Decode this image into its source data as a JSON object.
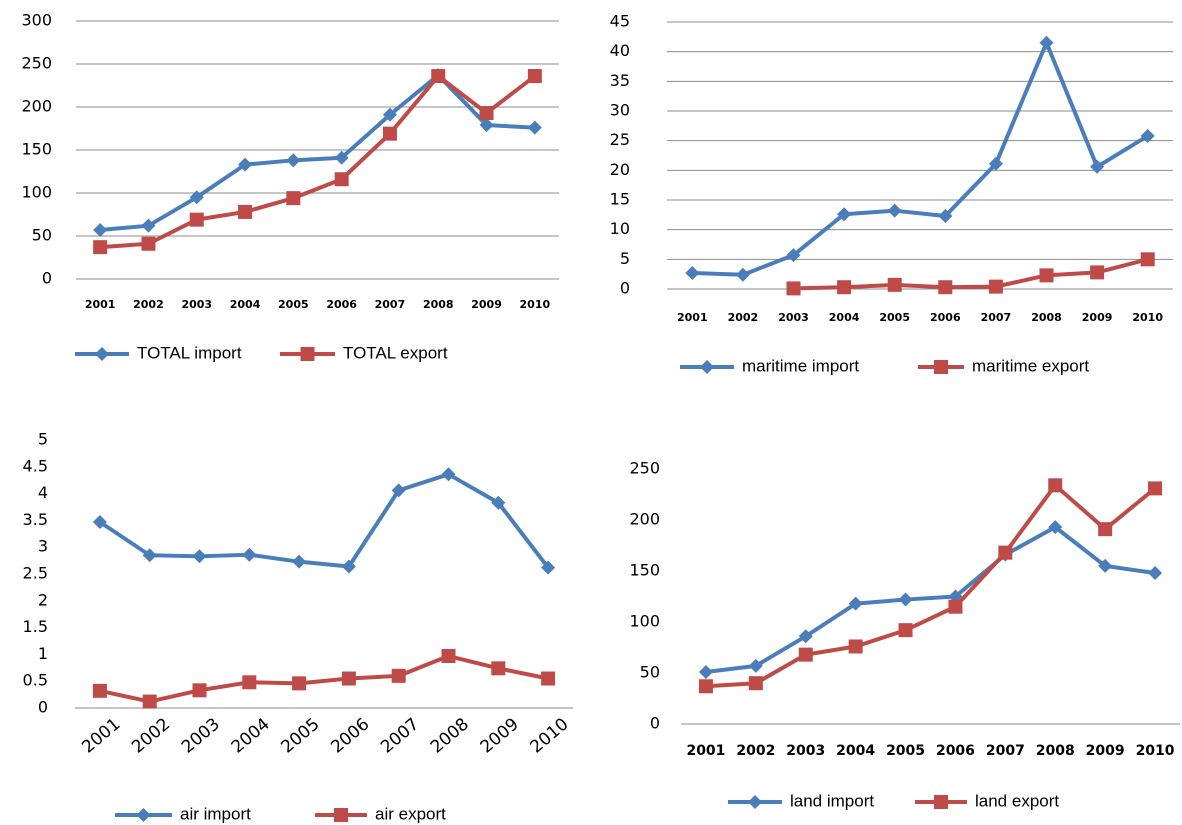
{
  "chart_data": [
    {
      "type": "line",
      "categories": [
        "2001",
        "2002",
        "2003",
        "2004",
        "2005",
        "2006",
        "2007",
        "2008",
        "2009",
        "2010"
      ],
      "series": [
        {
          "name": "TOTAL import",
          "color": "#4a7ebb",
          "marker": "diamond",
          "values": [
            57,
            62,
            95,
            133,
            138,
            141,
            191,
            237,
            179,
            176
          ]
        },
        {
          "name": "TOTAL export",
          "color": "#be4b48",
          "marker": "square",
          "values": [
            37,
            41,
            69,
            78,
            94,
            116,
            169,
            236,
            193,
            236
          ]
        }
      ],
      "ylim": [
        0,
        300
      ],
      "yticks": [
        0,
        50,
        100,
        150,
        200,
        250,
        300
      ],
      "grid": true,
      "legend": "bottom"
    },
    {
      "type": "line",
      "categories": [
        "2001",
        "2002",
        "2003",
        "2004",
        "2005",
        "2006",
        "2007",
        "2008",
        "2009",
        "2010"
      ],
      "series": [
        {
          "name": "maritime import",
          "color": "#4a7ebb",
          "marker": "diamond",
          "values": [
            2.7,
            2.4,
            5.7,
            12.6,
            13.2,
            12.3,
            21.1,
            41.5,
            20.6,
            25.8
          ]
        },
        {
          "name": "maritime export",
          "color": "#be4b48",
          "marker": "square",
          "values": [
            null,
            null,
            0.1,
            0.3,
            0.7,
            0.3,
            0.4,
            2.3,
            2.8,
            5.0
          ]
        }
      ],
      "ylim": [
        0,
        45
      ],
      "yticks": [
        0,
        5,
        10,
        15,
        20,
        25,
        30,
        35,
        40,
        45
      ],
      "grid": true,
      "legend": "bottom"
    },
    {
      "type": "line",
      "categories": [
        "2001",
        "2002",
        "2003",
        "2004",
        "2005",
        "2006",
        "2007",
        "2008",
        "2009",
        "2010"
      ],
      "series": [
        {
          "name": "air import",
          "color": "#4a7ebb",
          "marker": "diamond",
          "values": [
            3.47,
            2.85,
            2.83,
            2.86,
            2.73,
            2.64,
            4.06,
            4.36,
            3.83,
            2.62
          ]
        },
        {
          "name": "air export",
          "color": "#be4b48",
          "marker": "square",
          "values": [
            0.32,
            0.12,
            0.33,
            0.48,
            0.46,
            0.55,
            0.6,
            0.97,
            0.74,
            0.55
          ]
        }
      ],
      "ylim": [
        0,
        5
      ],
      "yticks": [
        0,
        0.5,
        1,
        1.5,
        2,
        2.5,
        3,
        3.5,
        4,
        4.5,
        5
      ],
      "grid": false,
      "legend": "bottom"
    },
    {
      "type": "line",
      "categories": [
        "2001",
        "2002",
        "2003",
        "2004",
        "2005",
        "2006",
        "2007",
        "2008",
        "2009",
        "2010"
      ],
      "series": [
        {
          "name": "land import",
          "color": "#4a7ebb",
          "marker": "diamond",
          "values": [
            51,
            57,
            86,
            118,
            122,
            125,
            166,
            193,
            155,
            148
          ]
        },
        {
          "name": "land export",
          "color": "#be4b48",
          "marker": "square",
          "values": [
            37,
            40,
            68,
            76,
            92,
            115,
            168,
            234,
            191,
            231
          ]
        }
      ],
      "ylim": [
        0,
        250
      ],
      "yticks": [
        0,
        50,
        100,
        150,
        200,
        250
      ],
      "grid": false,
      "legend": "bottom"
    }
  ]
}
